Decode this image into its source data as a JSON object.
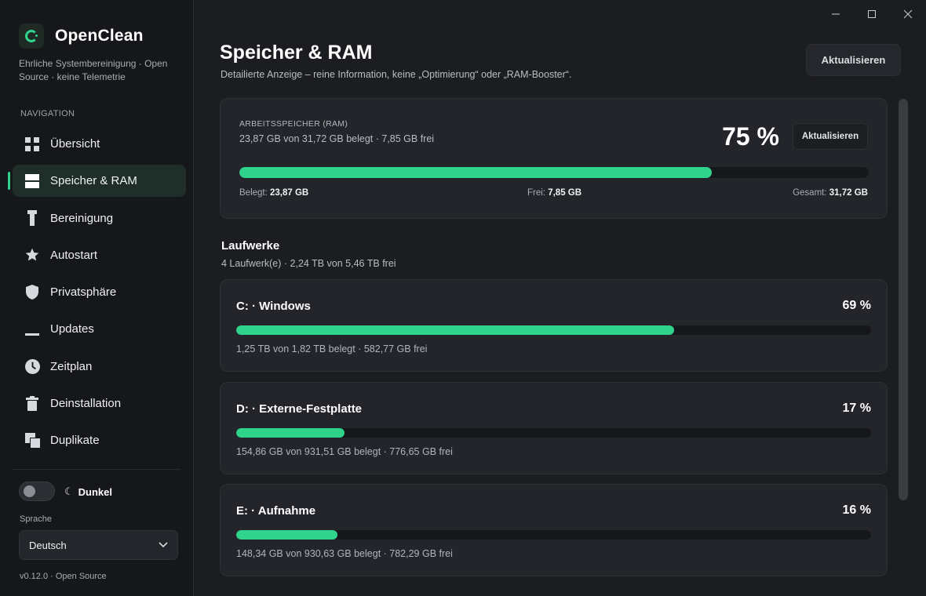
{
  "app": {
    "name": "OpenClean",
    "tagline": "Ehrliche Systembereinigung · Open Source · keine Telemetrie",
    "accent": "#2fd38c"
  },
  "sidebar": {
    "nav_heading": "NAVIGATION",
    "items": [
      {
        "label": "Übersicht",
        "icon": "grid-icon",
        "active": false
      },
      {
        "label": "Speicher & RAM",
        "icon": "storage-icon",
        "active": true
      },
      {
        "label": "Bereinigung",
        "icon": "broom-icon",
        "active": false
      },
      {
        "label": "Autostart",
        "icon": "star-icon",
        "active": false
      },
      {
        "label": "Privatsphäre",
        "icon": "shield-icon",
        "active": false
      },
      {
        "label": "Updates",
        "icon": "minus-icon",
        "active": false
      },
      {
        "label": "Zeitplan",
        "icon": "clock-icon",
        "active": false
      },
      {
        "label": "Deinstallation",
        "icon": "trash-icon",
        "active": false
      },
      {
        "label": "Duplikate",
        "icon": "copy-icon",
        "active": false
      }
    ],
    "theme_label": "Dunkel",
    "language_label": "Sprache",
    "language_value": "Deutsch",
    "version": "v0.12.0 · Open Source"
  },
  "header": {
    "title": "Speicher & RAM",
    "subtitle": "Detailierte Anzeige – reine Information, keine „Optimierung“ oder „RAM-Booster“.",
    "refresh_label": "Aktualisieren"
  },
  "ram": {
    "heading": "ARBEITSSPEICHER (RAM)",
    "detail": "23,87 GB von 31,72 GB belegt · 7,85 GB frei",
    "percent_text": "75 %",
    "percent": 75,
    "refresh_label": "Aktualisieren",
    "used_label": "Belegt:",
    "used_value": "23,87 GB",
    "free_label": "Frei:",
    "free_value": "7,85 GB",
    "total_label": "Gesamt:",
    "total_value": "31,72 GB"
  },
  "drives": {
    "heading": "Laufwerke",
    "summary": "4 Laufwerk(e) · 2,24 TB von 5,46 TB frei",
    "items": [
      {
        "title": "C: · Windows",
        "percent_text": "69 %",
        "percent": 69,
        "detail": "1,25 TB von 1,82 TB belegt · 582,77 GB frei"
      },
      {
        "title": "D: · Externe-Festplatte",
        "percent_text": "17 %",
        "percent": 17,
        "detail": "154,86 GB von 931,51 GB belegt · 776,65 GB frei"
      },
      {
        "title": "E: · Aufnahme",
        "percent_text": "16 %",
        "percent": 16,
        "detail": "148,34 GB von 930,63 GB belegt · 782,29 GB frei"
      }
    ]
  }
}
